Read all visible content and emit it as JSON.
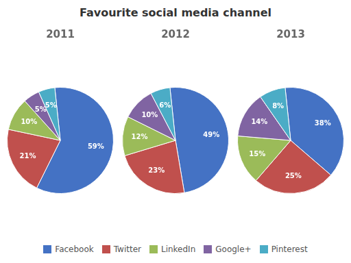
{
  "title": "Favourite social media channel",
  "legend": "bottom",
  "chart_data": [
    {
      "type": "pie",
      "title": "2011",
      "categories": [
        "Facebook",
        "Twitter",
        "LinkedIn",
        "Google+",
        "Pinterest"
      ],
      "values": [
        59,
        21,
        10,
        5,
        5
      ],
      "value_labels": [
        "59%",
        "21%",
        "10%",
        "5%",
        "5%"
      ],
      "colors": [
        "#4472C4",
        "#C0504D",
        "#9BBB59",
        "#8064A2",
        "#4BACC6"
      ],
      "data_labels": true
    },
    {
      "type": "pie",
      "title": "2012",
      "categories": [
        "Facebook",
        "Twitter",
        "LinkedIn",
        "Google+",
        "Pinterest"
      ],
      "values": [
        49,
        23,
        12,
        10,
        6
      ],
      "value_labels": [
        "49%",
        "23%",
        "12%",
        "10%",
        "6%"
      ],
      "colors": [
        "#4472C4",
        "#C0504D",
        "#9BBB59",
        "#8064A2",
        "#4BACC6"
      ],
      "data_labels": true
    },
    {
      "type": "pie",
      "title": "2013",
      "categories": [
        "Facebook",
        "Twitter",
        "LinkedIn",
        "Google+",
        "Pinterest"
      ],
      "values": [
        38,
        25,
        15,
        14,
        8
      ],
      "value_labels": [
        "38%",
        "25%",
        "15%",
        "14%",
        "8%"
      ],
      "colors": [
        "#4472C4",
        "#C0504D",
        "#9BBB59",
        "#8064A2",
        "#4BACC6"
      ],
      "data_labels": true
    }
  ]
}
